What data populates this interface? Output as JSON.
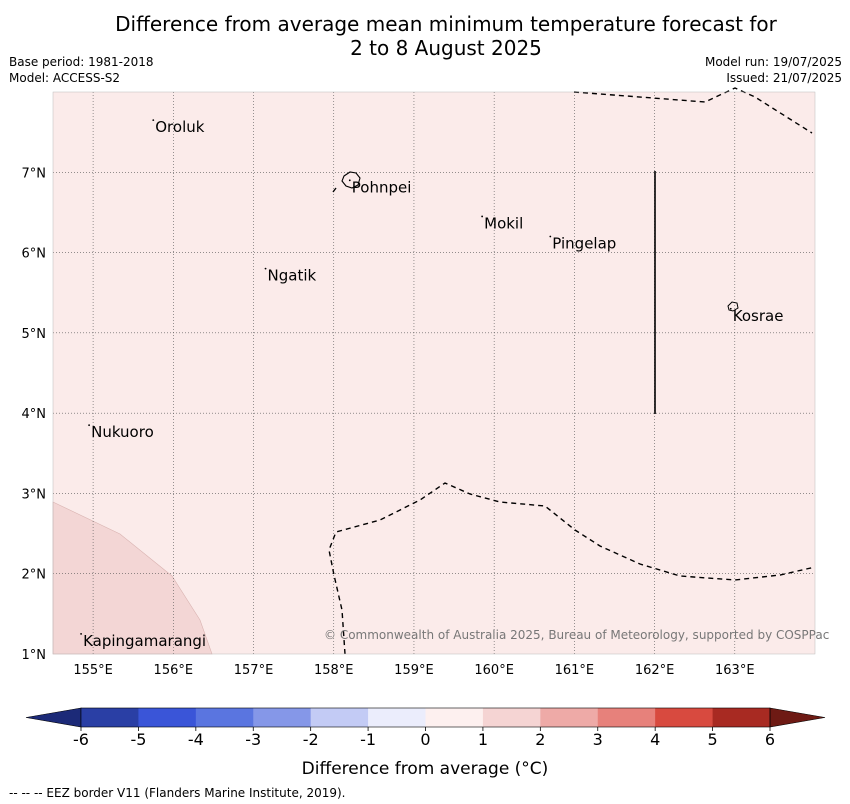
{
  "header": {
    "title_line1": "Difference from average mean minimum temperature forecast for",
    "title_line2": "2 to 8 August 2025",
    "base_period": "Base period: 1981-2018",
    "model": "Model: ACCESS-S2",
    "model_run": "Model run: 19/07/2025",
    "issued": "Issued: 21/07/2025"
  },
  "map": {
    "lon_range": [
      154.5,
      164.0
    ],
    "lat_range": [
      1.0,
      8.0
    ],
    "lon_ticks": [
      "155°E",
      "156°E",
      "157°E",
      "158°E",
      "159°E",
      "160°E",
      "161°E",
      "162°E",
      "163°E"
    ],
    "lat_ticks": [
      "1°N",
      "2°N",
      "3°N",
      "4°N",
      "5°N",
      "6°N",
      "7°N"
    ],
    "gridlines": true,
    "background_color": "#fbebea",
    "warm_region_color": "#f3d6d5",
    "places": [
      {
        "name": "Oroluk",
        "lon": 155.75,
        "lat": 7.65
      },
      {
        "name": "Pohnpei",
        "lon": 158.2,
        "lat": 6.9
      },
      {
        "name": "Mokil",
        "lon": 159.85,
        "lat": 6.45
      },
      {
        "name": "Pingelap",
        "lon": 160.7,
        "lat": 6.2
      },
      {
        "name": "Ngatik",
        "lon": 157.15,
        "lat": 5.8
      },
      {
        "name": "Kosrae",
        "lon": 162.95,
        "lat": 5.3
      },
      {
        "name": "Nukuoro",
        "lon": 154.95,
        "lat": 3.85
      },
      {
        "name": "Kapingamarangi",
        "lon": 154.85,
        "lat": 1.25
      }
    ],
    "copyright": "© Commonwealth of Australia 2025, Bureau of Meteorology, supported by COSPPac"
  },
  "colorbar": {
    "label": "Difference from average (°C)",
    "ticks": [
      "-6",
      "-5",
      "-4",
      "-3",
      "-2",
      "-1",
      "0",
      "1",
      "2",
      "3",
      "4",
      "5",
      "6"
    ],
    "colors": [
      "#2a3fa5",
      "#3a55d8",
      "#5a75e0",
      "#8597e8",
      "#c3cbf5",
      "#ebedfc",
      "#fdf0ef",
      "#f5d4d3",
      "#eeaaa7",
      "#e7817b",
      "#d84a3f",
      "#a82a22"
    ],
    "low_extend_color": "#1c2a78",
    "high_extend_color": "#6e1a14"
  },
  "footer": {
    "eez_note": "--  --  -- EEZ border V11 (Flanders Marine Institute, 2019)."
  }
}
